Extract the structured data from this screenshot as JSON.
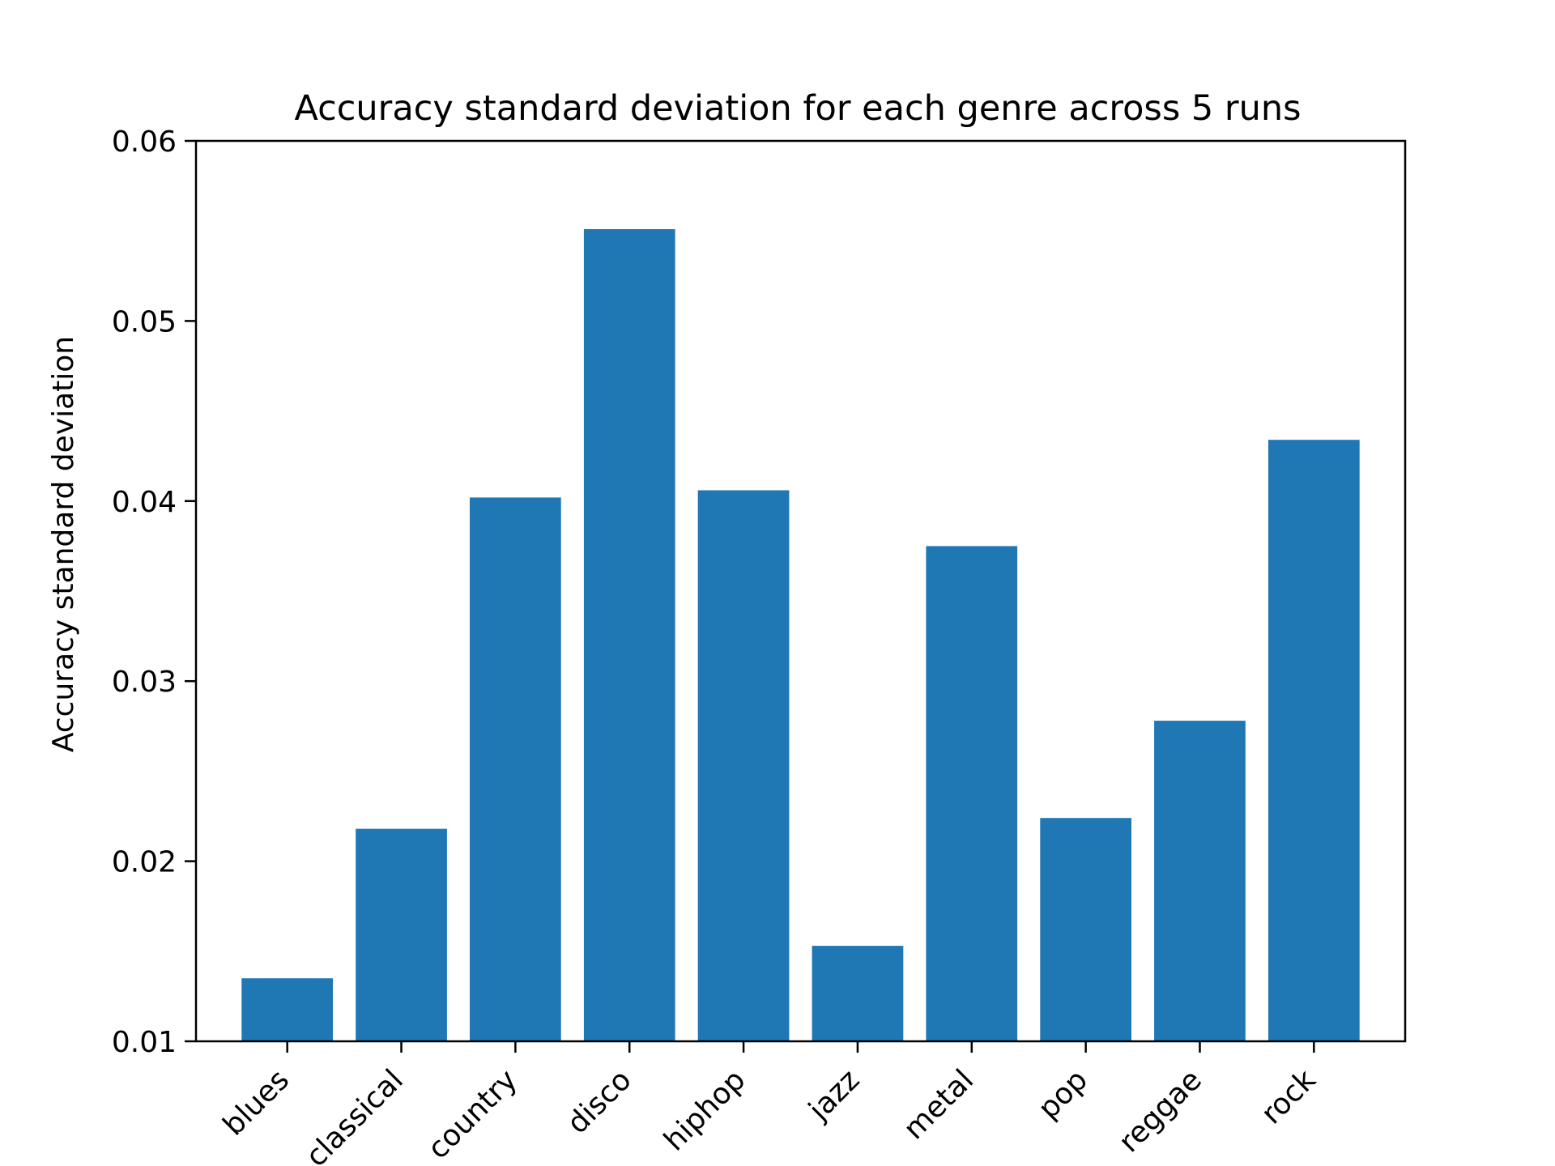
{
  "chart_data": {
    "type": "bar",
    "title": "Accuracy standard deviation for each genre across 5 runs",
    "xlabel": "",
    "ylabel": "Accuracy standard deviation",
    "categories": [
      "blues",
      "classical",
      "country",
      "disco",
      "hiphop",
      "jazz",
      "metal",
      "pop",
      "reggae",
      "rock"
    ],
    "values": [
      0.0135,
      0.0218,
      0.0402,
      0.0551,
      0.0406,
      0.0153,
      0.0375,
      0.0224,
      0.0278,
      0.0434
    ],
    "ylim": [
      0.01,
      0.06
    ],
    "yticks": [
      "0.01",
      "0.02",
      "0.03",
      "0.04",
      "0.05",
      "0.06"
    ],
    "bar_color": "#1f77b4",
    "grid": false,
    "legend": "none"
  }
}
